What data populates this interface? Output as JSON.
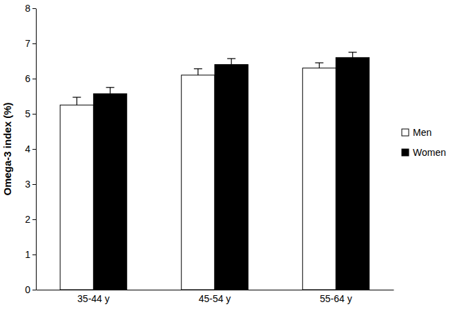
{
  "chart_data": {
    "type": "bar",
    "y_label": "Omega-3 index (%)",
    "categories": [
      "35-44 y",
      "45-54 y",
      "55-64 y"
    ],
    "series": [
      {
        "name": "Men",
        "color": "#ffffff",
        "values": [
          5.25,
          6.1,
          6.3
        ],
        "errors": [
          0.22,
          0.18,
          0.15
        ]
      },
      {
        "name": "Women",
        "color": "#000000",
        "values": [
          5.57,
          6.4,
          6.6
        ],
        "errors": [
          0.18,
          0.17,
          0.15
        ]
      }
    ],
    "ylim": [
      0,
      8
    ],
    "yticks": [
      0,
      1,
      2,
      3,
      4,
      5,
      6,
      7,
      8
    ],
    "grid": false,
    "legend": "right"
  }
}
